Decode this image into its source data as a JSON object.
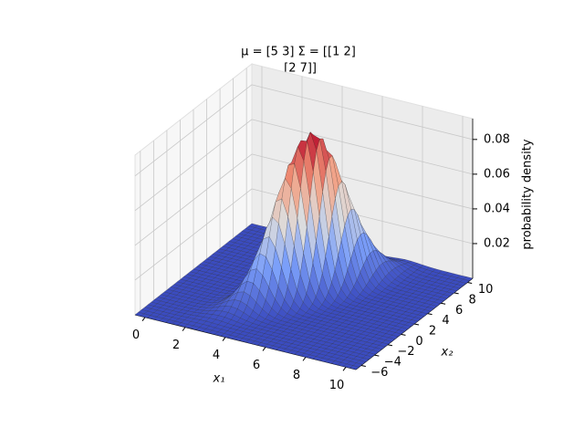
{
  "chart_data": {
    "type": "surface",
    "title": [
      "μ = [5 3] Σ = [[1 2]",
      " [2 7]]"
    ],
    "mean": [
      5,
      3
    ],
    "cov": [
      [
        1,
        2
      ],
      [
        2,
        7
      ]
    ],
    "xlabel": "x₁",
    "ylabel": "x₂",
    "zlabel": "probability density",
    "xlim": [
      -0.5,
      10.5
    ],
    "ylim": [
      -6.8,
      10.8
    ],
    "zlim": [
      0,
      0.092
    ],
    "xticks": [
      0,
      2,
      4,
      6,
      8,
      10
    ],
    "yticks": [
      {
        "value": -6,
        "label": "−6"
      },
      {
        "value": -4,
        "label": "−4"
      },
      {
        "value": -2,
        "label": "−2"
      },
      0,
      2,
      4,
      6,
      8,
      10
    ],
    "zticks": [
      0.02,
      0.04,
      0.06,
      0.08
    ],
    "colormap": "coolwarm",
    "grid": true
  }
}
